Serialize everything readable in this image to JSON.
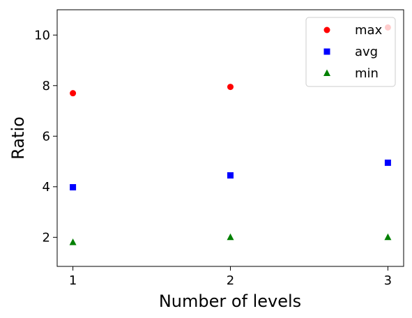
{
  "chart_data": {
    "type": "scatter",
    "xlabel": "Number of levels",
    "ylabel": "Ratio",
    "x": [
      1,
      2,
      3
    ],
    "xticks": [
      "1",
      "2",
      "3"
    ],
    "yticks": [
      "2",
      "4",
      "6",
      "8",
      "10"
    ],
    "xlim": [
      0.9,
      3.1
    ],
    "ylim": [
      0.85,
      11.0
    ],
    "grid": false,
    "legend_position": "top-right",
    "series": [
      {
        "name": "max",
        "marker": "circle",
        "color": "#ff0000",
        "values": [
          7.7,
          7.95,
          10.3
        ]
      },
      {
        "name": "avg",
        "marker": "square",
        "color": "#0000ff",
        "values": [
          3.98,
          4.45,
          4.95
        ]
      },
      {
        "name": "min",
        "marker": "triangle",
        "color": "#008000",
        "values": [
          1.8,
          2.0,
          2.0
        ]
      }
    ]
  }
}
